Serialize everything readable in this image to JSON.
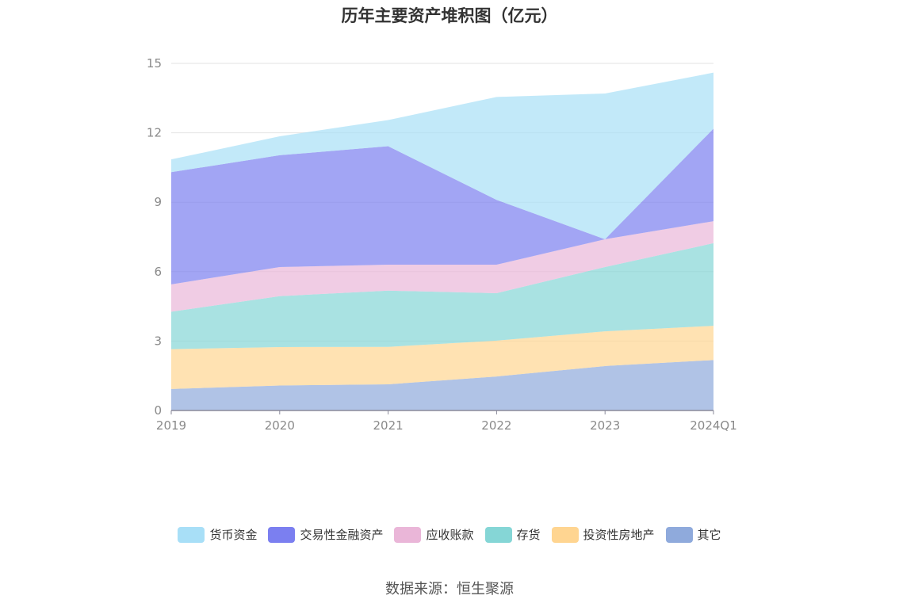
{
  "chart_data": {
    "type": "area",
    "stacked": true,
    "title": "历年主要资产堆积图（亿元）",
    "xlabel": "",
    "ylabel": "",
    "categories": [
      "2019",
      "2020",
      "2021",
      "2022",
      "2023",
      "2024Q1"
    ],
    "ylim": [
      0,
      15
    ],
    "yticks": [
      0,
      3,
      6,
      9,
      12,
      15
    ],
    "grid": true,
    "legend_position": "bottom",
    "series": [
      {
        "name": "其它",
        "color": "#8faadc",
        "values": [
          0.93,
          1.08,
          1.13,
          1.47,
          1.92,
          2.18
        ]
      },
      {
        "name": "投资性房地产",
        "color": "#ffd591",
        "values": [
          1.72,
          1.66,
          1.62,
          1.55,
          1.5,
          1.48
        ]
      },
      {
        "name": "存货",
        "color": "#85d6d6",
        "values": [
          1.62,
          2.2,
          2.43,
          2.05,
          2.78,
          3.57
        ]
      },
      {
        "name": "应收账款",
        "color": "#eab6d8",
        "values": [
          1.18,
          1.26,
          1.12,
          1.23,
          1.2,
          0.95
        ]
      },
      {
        "name": "交易性金融资产",
        "color": "#7b7ff0",
        "values": [
          4.85,
          4.83,
          5.12,
          2.8,
          0.0,
          4.0
        ]
      },
      {
        "name": "货币资金",
        "color": "#a8dff7",
        "values": [
          0.55,
          0.82,
          1.13,
          4.45,
          6.3,
          2.42
        ]
      }
    ],
    "legend_order": [
      "货币资金",
      "交易性金融资产",
      "应收账款",
      "存货",
      "投资性房地产",
      "其它"
    ]
  },
  "source_text": "数据来源：恒生聚源"
}
